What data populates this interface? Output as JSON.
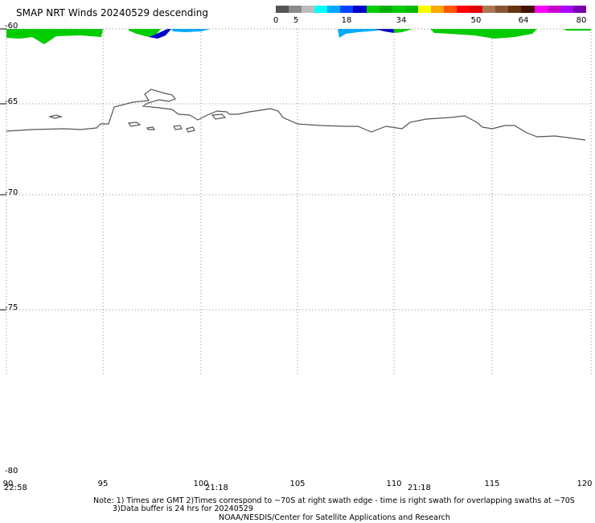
{
  "title": "SMAP NRT Winds  20240529 descending",
  "colorbar": {
    "labels": [
      "0",
      "5",
      "18",
      "34",
      "50",
      "64",
      "80"
    ],
    "segments": [
      "#555555",
      "#8a8a8a",
      "#bdbdbd",
      "#00ffff",
      "#00aaff",
      "#0044ff",
      "#0000cc",
      "#00cc00",
      "#00b000",
      "#00cc00",
      "#00b800",
      "#ffff00",
      "#ffaa00",
      "#ff5500",
      "#ff0000",
      "#e00000",
      "#aa7755",
      "#885533",
      "#663311",
      "#441100",
      "#ff00ff",
      "#cc00cc",
      "#aa00ff",
      "#7700aa"
    ]
  },
  "map": {
    "lat_labels": [
      "-60",
      "-65",
      "-70",
      "-75",
      "-80"
    ],
    "lon_labels": [
      "90",
      "95",
      "100",
      "105",
      "110",
      "115",
      "120"
    ],
    "times": [
      "22:58",
      "21:18",
      "21:18"
    ]
  },
  "footer": {
    "note1": "Note: 1) Times are GMT 2)Times correspond to ~70S at right swath edge - time is right swath for overlapping swaths at ~70S",
    "note2": "3)Data buffer is 24 hrs for 20240529",
    "credit": "NOAA/NESDIS/Center for Satellite Applications and Research"
  },
  "colors": {
    "wind_green": "#00cc00",
    "wind_blue": "#0000cc",
    "wind_lightblue": "#00aaff",
    "coast": "#555555",
    "grid": "#888888"
  }
}
